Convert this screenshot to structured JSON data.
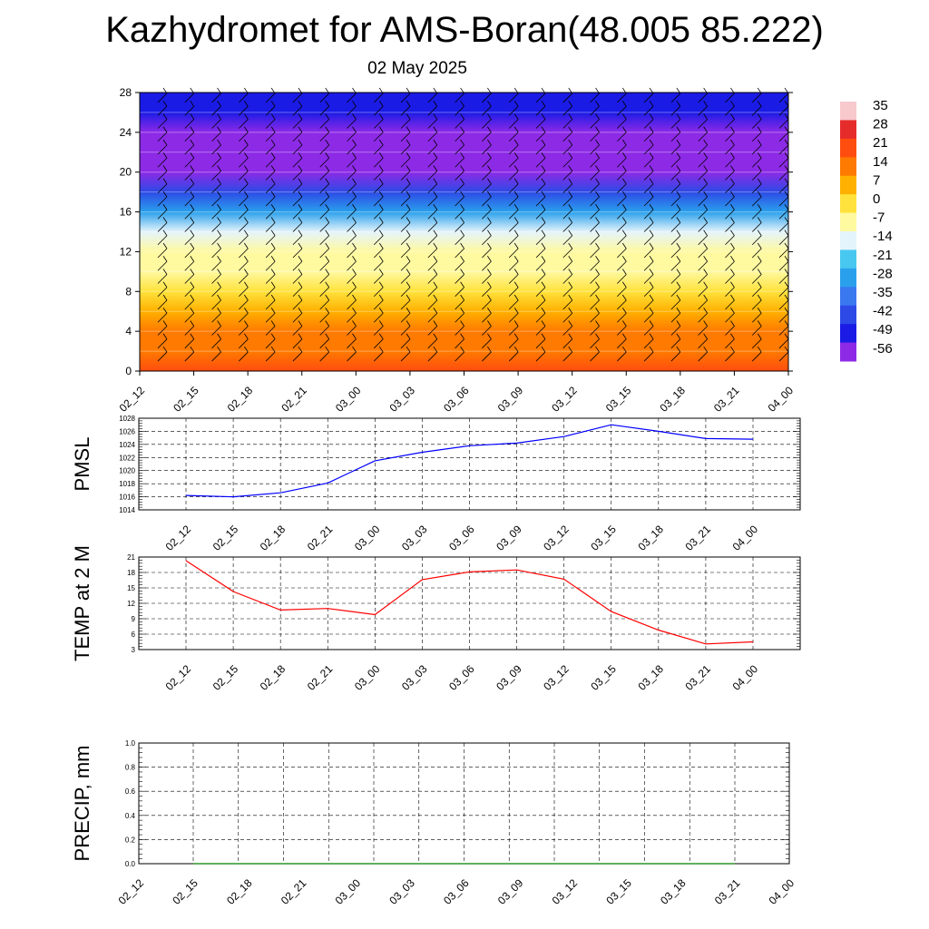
{
  "title": "Kazhydromet for AMS-Boran(48.005 85.222)",
  "subtitle": "02 May 2025",
  "time_labels": [
    "02_12",
    "02_15",
    "02_18",
    "02_21",
    "03_00",
    "03_03",
    "03_06",
    "03_09",
    "03_12",
    "03_15",
    "03_18",
    "03_21",
    "04_00"
  ],
  "colorbar": {
    "labels": [
      "35",
      "28",
      "21",
      "14",
      "7",
      "0",
      "-7",
      "-14",
      "-21",
      "-28",
      "-35",
      "-42",
      "-49",
      "-56"
    ],
    "colors": [
      "#f7c8cc",
      "#e62b2b",
      "#ff4d0f",
      "#ff7a00",
      "#ffb000",
      "#ffe23c",
      "#fff9a0",
      "#e4f4fb",
      "#48c8f0",
      "#2aa0ec",
      "#3a78f0",
      "#2d4ae6",
      "#1b1be6",
      "#8d2ae6"
    ]
  },
  "chart_data": [
    {
      "type": "heatmap",
      "description_key": "upper-air temperature with wind barbs",
      "x": [
        "02_12",
        "02_15",
        "02_18",
        "02_21",
        "03_00",
        "03_03",
        "03_06",
        "03_09",
        "03_12",
        "03_15",
        "03_18",
        "03_21",
        "04_00"
      ],
      "y_ticks": [
        0,
        4,
        8,
        12,
        16,
        20,
        24,
        28
      ],
      "ylim": [
        0,
        28
      ],
      "levels": [
        0,
        2,
        4,
        6,
        8,
        10,
        12,
        14,
        16,
        18,
        20,
        22,
        24,
        26,
        28
      ],
      "z_profile": [
        22,
        17,
        12,
        7,
        2,
        -4,
        -9,
        -17,
        -30,
        -45,
        -55,
        -58,
        -56,
        -52,
        -48
      ],
      "colorbar_range": [
        -56,
        35
      ]
    },
    {
      "type": "line",
      "ylabel": "PMSL",
      "x": [
        "02_12",
        "02_15",
        "02_18",
        "02_21",
        "03_00",
        "03_03",
        "03_06",
        "03_09",
        "03_12",
        "03_15",
        "03_18",
        "03_21",
        "04_00"
      ],
      "y": [
        1016.2,
        1016.0,
        1016.6,
        1018.1,
        1021.5,
        1022.8,
        1023.8,
        1024.2,
        1025.2,
        1027.0,
        1026.0,
        1024.9,
        1024.8
      ],
      "ylim": [
        1014,
        1028
      ],
      "y_ticks": [
        1014,
        1016,
        1018,
        1020,
        1022,
        1024,
        1026,
        1028
      ],
      "color": "#0000ff",
      "grid": true
    },
    {
      "type": "line",
      "ylabel": "TEMP at 2 M",
      "x": [
        "02_12",
        "02_15",
        "02_18",
        "02_21",
        "03_00",
        "03_03",
        "03_06",
        "03_09",
        "03_12",
        "03_15",
        "03_18",
        "03_21",
        "04_00"
      ],
      "y": [
        20.3,
        14.3,
        10.7,
        11.0,
        9.8,
        16.6,
        18.1,
        18.5,
        16.7,
        10.4,
        6.8,
        4.1,
        4.5
      ],
      "ylim": [
        3,
        21
      ],
      "y_ticks": [
        3,
        6,
        9,
        12,
        15,
        18,
        21
      ],
      "color": "#ff0000",
      "grid": true
    },
    {
      "type": "line",
      "ylabel": "PRECIP, mm",
      "x": [
        "02_12",
        "02_15",
        "02_18",
        "02_21",
        "03_00",
        "03_03",
        "03_06",
        "03_09",
        "03_12",
        "03_15",
        "03_18",
        "03_21",
        "04_00"
      ],
      "y": [
        0,
        0,
        0,
        0,
        0,
        0,
        0,
        0,
        0,
        0,
        0,
        0,
        0
      ],
      "ylim": [
        0,
        1
      ],
      "y_ticks": [
        0.0,
        0.2,
        0.4,
        0.6,
        0.8,
        1.0
      ],
      "y_tick_labels": [
        "0.0",
        "0.2",
        "0.4",
        "0.6",
        "0.8",
        "1.0"
      ],
      "color": "#008000",
      "grid": true
    }
  ]
}
